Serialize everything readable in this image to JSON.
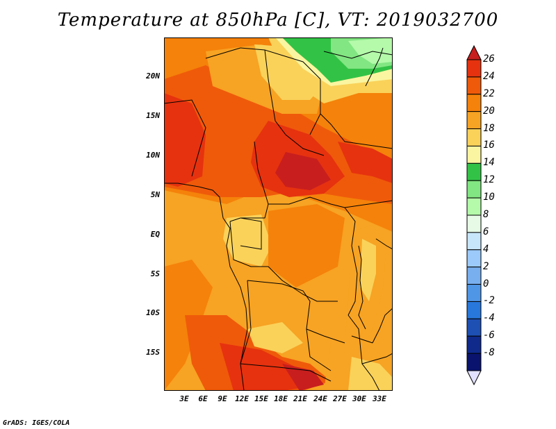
{
  "title": "Temperature at 850hPa [C], VT: 2019032700",
  "footer": "GrADS: IGES/COLA",
  "lat_labels": [
    "20N",
    "15N",
    "10N",
    "5N",
    "EQ",
    "5S",
    "10S",
    "15S"
  ],
  "lon_labels": [
    "3E",
    "6E",
    "9E",
    "12E",
    "15E",
    "18E",
    "21E",
    "24E",
    "27E",
    "30E",
    "33E"
  ],
  "colorbar": {
    "labels": [
      "26",
      "24",
      "22",
      "20",
      "18",
      "16",
      "14",
      "12",
      "10",
      "8",
      "6",
      "4",
      "2",
      "0",
      "-2",
      "-4",
      "-6",
      "-8"
    ],
    "colors": [
      "#c81e1e",
      "#e6320f",
      "#ef5a0a",
      "#f5820a",
      "#f7a323",
      "#fad25a",
      "#faf5a0",
      "#32c346",
      "#82e682",
      "#b4faaa",
      "#e6fae6",
      "#c8e6fa",
      "#9ccafa",
      "#78afef",
      "#5096e6",
      "#2878dc",
      "#1e50b4",
      "#102a8c",
      "#0a146e",
      "#e1e1ff"
    ]
  },
  "map": {
    "colors": {
      "deep_red": "#c81e1e",
      "red_orange": "#e6320f",
      "orange": "#ef5a0a",
      "orange_light": "#f5820a",
      "light_orange": "#f7a323",
      "yellow": "#fad25a",
      "pale_yellow": "#faf5a0",
      "green": "#32c346",
      "light_green": "#82e682",
      "pale_green": "#b4faaa"
    }
  }
}
